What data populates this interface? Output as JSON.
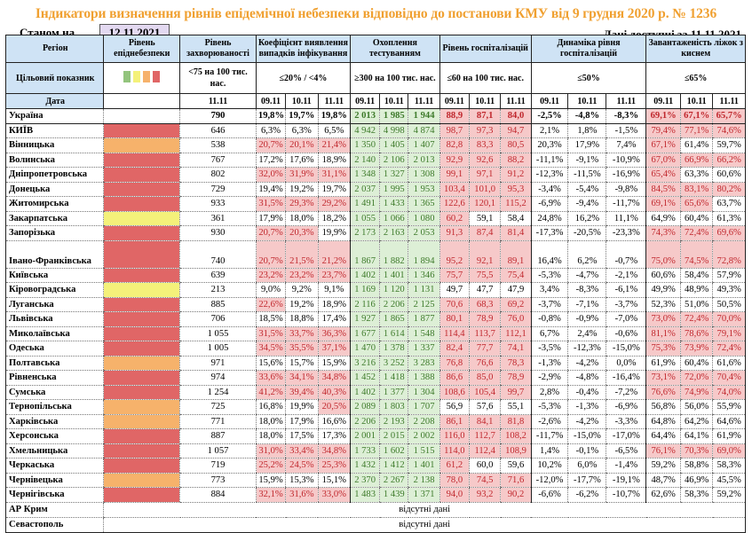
{
  "title": "Індикатори визначення рівнів епідемічної небезпеки відповідно до постанови КМУ від 9 грудня 2020 р. № 1236",
  "as_of_label": "Станом на",
  "as_of_date": "12.11.2021",
  "data_available": "Дані доступні за 11.11.2021",
  "headers": {
    "region": "Регіон",
    "level": "Рівень епіднебезпеки",
    "morbidity": "Рівень захворюваності",
    "detection": "Коефіцієнт виявлення випадків інфікування",
    "testing": "Охоплення тестуванням",
    "hosp": "Рівень госпіталізацій",
    "hosp_dyn": "Динаміка рівня госпіталізацій",
    "oxygen": "Завантаженість ліжок з киснем"
  },
  "targets": {
    "label": "Цільовий показник",
    "morbidity": "<75 на 100 тис. нас.",
    "detection": "≤20% / <4%",
    "testing": "≥300 на 100 тис. нас.",
    "hosp": "≤60 на 100 тис. нас.",
    "hosp_dyn": "≤50%",
    "oxygen": "≤65%"
  },
  "legend_colors": [
    "#93c47d",
    "#f4f17a",
    "#f6b26b",
    "#e06666"
  ],
  "dates": {
    "label": "Дата",
    "morbidity": "11.11",
    "d": [
      "09.11",
      "10.11",
      "11.11"
    ]
  },
  "no_data_text": "відсутні дані",
  "rows": [
    {
      "region": "Україна",
      "level": "none",
      "morb": "790",
      "det": [
        "19,8%",
        "19,7%",
        "19,8%"
      ],
      "test": [
        "2 013",
        "1 985",
        "1 944"
      ],
      "hosp": [
        "88,9",
        "87,1",
        "84,0"
      ],
      "dyn": [
        "-2,5%",
        "-4,8%",
        "-8,3%"
      ],
      "oxy": [
        "69,1%",
        "67,1%",
        "65,7%"
      ]
    },
    {
      "region": "КИЇВ",
      "level": "red",
      "morb": "646",
      "det": [
        "6,3%",
        "6,3%",
        "6,5%"
      ],
      "test": [
        "4 942",
        "4 998",
        "4 874"
      ],
      "hosp": [
        "98,7",
        "97,3",
        "94,7"
      ],
      "dyn": [
        "2,1%",
        "1,8%",
        "-1,5%"
      ],
      "oxy": [
        "79,4%",
        "77,1%",
        "74,6%"
      ]
    },
    {
      "region": "Вінницька",
      "level": "orange",
      "morb": "538",
      "det": [
        "20,7%",
        "20,1%",
        "21,4%"
      ],
      "test": [
        "1 350",
        "1 405",
        "1 407"
      ],
      "hosp": [
        "82,8",
        "83,3",
        "80,5"
      ],
      "dyn": [
        "20,3%",
        "17,9%",
        "7,4%"
      ],
      "oxy": [
        "67,1%",
        "61,4%",
        "59,7%"
      ]
    },
    {
      "region": "Волинська",
      "level": "red",
      "morb": "767",
      "det": [
        "17,2%",
        "17,6%",
        "18,9%"
      ],
      "test": [
        "2 140",
        "2 106",
        "2 013"
      ],
      "hosp": [
        "92,9",
        "92,6",
        "88,2"
      ],
      "dyn": [
        "-11,1%",
        "-9,1%",
        "-10,9%"
      ],
      "oxy": [
        "67,0%",
        "66,9%",
        "66,2%"
      ]
    },
    {
      "region": "Дніпропетровська",
      "level": "red",
      "morb": "802",
      "det": [
        "32,0%",
        "31,9%",
        "31,1%"
      ],
      "test": [
        "1 348",
        "1 327",
        "1 308"
      ],
      "hosp": [
        "99,1",
        "97,1",
        "91,2"
      ],
      "dyn": [
        "-12,3%",
        "-11,5%",
        "-16,9%"
      ],
      "oxy": [
        "65,4%",
        "63,3%",
        "60,6%"
      ]
    },
    {
      "region": "Донецька",
      "level": "red",
      "morb": "729",
      "det": [
        "19,4%",
        "19,2%",
        "19,7%"
      ],
      "test": [
        "2 037",
        "1 995",
        "1 953"
      ],
      "hosp": [
        "103,4",
        "101,0",
        "95,3"
      ],
      "dyn": [
        "-3,4%",
        "-5,4%",
        "-9,8%"
      ],
      "oxy": [
        "84,5%",
        "83,1%",
        "80,2%"
      ]
    },
    {
      "region": "Житомирська",
      "level": "red",
      "morb": "933",
      "det": [
        "31,5%",
        "29,3%",
        "29,2%"
      ],
      "test": [
        "1 491",
        "1 433",
        "1 365"
      ],
      "hosp": [
        "122,6",
        "120,1",
        "115,2"
      ],
      "dyn": [
        "-6,9%",
        "-9,4%",
        "-11,7%"
      ],
      "oxy": [
        "69,1%",
        "65,6%",
        "63,7%"
      ]
    },
    {
      "region": "Закарпатська",
      "level": "yellow",
      "morb": "361",
      "det": [
        "17,9%",
        "18,0%",
        "18,2%"
      ],
      "test": [
        "1 055",
        "1 066",
        "1 080"
      ],
      "hosp": [
        "60,2",
        "59,1",
        "58,4"
      ],
      "dyn": [
        "24,8%",
        "16,2%",
        "11,1%"
      ],
      "oxy": [
        "64,9%",
        "60,4%",
        "61,3%"
      ]
    },
    {
      "region": "Запорізька",
      "level": "red",
      "morb": "930",
      "det": [
        "20,7%",
        "20,3%",
        "19,9%"
      ],
      "test": [
        "2 173",
        "2 163",
        "2 053"
      ],
      "hosp": [
        "91,3",
        "87,4",
        "81,4"
      ],
      "dyn": [
        "-17,3%",
        "-20,5%",
        "-23,3%"
      ],
      "oxy": [
        "74,3%",
        "72,4%",
        "69,6%"
      ]
    },
    {
      "region": "Івано-Франківська",
      "level": "red",
      "morb": "740",
      "det": [
        "20,7%",
        "21,5%",
        "21,2%"
      ],
      "test": [
        "1 867",
        "1 882",
        "1 894"
      ],
      "hosp": [
        "95,2",
        "92,1",
        "89,1"
      ],
      "dyn": [
        "16,4%",
        "6,2%",
        "-0,7%"
      ],
      "oxy": [
        "75,0%",
        "74,5%",
        "72,8%"
      ]
    },
    {
      "region": "Київська",
      "level": "red",
      "morb": "639",
      "det": [
        "23,2%",
        "23,2%",
        "23,7%"
      ],
      "test": [
        "1 402",
        "1 401",
        "1 346"
      ],
      "hosp": [
        "75,7",
        "75,5",
        "75,4"
      ],
      "dyn": [
        "-5,3%",
        "-4,7%",
        "-2,1%"
      ],
      "oxy": [
        "60,6%",
        "58,4%",
        "57,9%"
      ]
    },
    {
      "region": "Кіровоградська",
      "level": "yellow",
      "morb": "213",
      "det": [
        "9,0%",
        "9,2%",
        "9,1%"
      ],
      "test": [
        "1 169",
        "1 120",
        "1 131"
      ],
      "hosp": [
        "49,7",
        "47,7",
        "47,9"
      ],
      "dyn": [
        "3,4%",
        "-8,3%",
        "-6,1%"
      ],
      "oxy": [
        "49,9%",
        "48,9%",
        "49,3%"
      ]
    },
    {
      "region": "Луганська",
      "level": "red",
      "morb": "885",
      "det": [
        "22,6%",
        "19,2%",
        "18,9%"
      ],
      "test": [
        "2 116",
        "2 206",
        "2 125"
      ],
      "hosp": [
        "70,6",
        "68,3",
        "69,2"
      ],
      "dyn": [
        "-3,7%",
        "-7,1%",
        "-3,7%"
      ],
      "oxy": [
        "52,3%",
        "51,0%",
        "50,5%"
      ]
    },
    {
      "region": "Львівська",
      "level": "red",
      "morb": "706",
      "det": [
        "18,5%",
        "18,8%",
        "17,4%"
      ],
      "test": [
        "1 927",
        "1 865",
        "1 877"
      ],
      "hosp": [
        "80,1",
        "78,9",
        "76,0"
      ],
      "dyn": [
        "-0,8%",
        "-0,9%",
        "-7,0%"
      ],
      "oxy": [
        "73,0%",
        "72,4%",
        "70,0%"
      ]
    },
    {
      "region": "Миколаївська",
      "level": "red",
      "morb": "1 055",
      "det": [
        "31,5%",
        "33,7%",
        "36,3%"
      ],
      "test": [
        "1 677",
        "1 614",
        "1 548"
      ],
      "hosp": [
        "114,4",
        "113,7",
        "112,1"
      ],
      "dyn": [
        "6,7%",
        "2,4%",
        "-0,6%"
      ],
      "oxy": [
        "81,1%",
        "78,6%",
        "79,1%"
      ]
    },
    {
      "region": "Одеська",
      "level": "red",
      "morb": "1 005",
      "det": [
        "34,5%",
        "35,5%",
        "37,1%"
      ],
      "test": [
        "1 470",
        "1 378",
        "1 337"
      ],
      "hosp": [
        "82,4",
        "77,7",
        "74,1"
      ],
      "dyn": [
        "-3,5%",
        "-12,3%",
        "-15,0%"
      ],
      "oxy": [
        "75,3%",
        "73,9%",
        "72,4%"
      ]
    },
    {
      "region": "Полтавська",
      "level": "orange",
      "morb": "971",
      "det": [
        "15,6%",
        "15,7%",
        "15,9%"
      ],
      "test": [
        "3 216",
        "3 252",
        "3 283"
      ],
      "hosp": [
        "76,8",
        "76,6",
        "78,3"
      ],
      "dyn": [
        "-1,3%",
        "-4,2%",
        "0,0%"
      ],
      "oxy": [
        "61,9%",
        "60,4%",
        "61,6%"
      ]
    },
    {
      "region": "Рівненська",
      "level": "red",
      "morb": "974",
      "det": [
        "33,6%",
        "34,1%",
        "34,8%"
      ],
      "test": [
        "1 452",
        "1 418",
        "1 388"
      ],
      "hosp": [
        "86,6",
        "85,0",
        "78,9"
      ],
      "dyn": [
        "-2,9%",
        "-4,8%",
        "-16,4%"
      ],
      "oxy": [
        "73,1%",
        "72,0%",
        "70,4%"
      ]
    },
    {
      "region": "Сумська",
      "level": "red",
      "morb": "1 254",
      "det": [
        "41,2%",
        "39,4%",
        "40,3%"
      ],
      "test": [
        "1 402",
        "1 377",
        "1 304"
      ],
      "hosp": [
        "108,6",
        "105,4",
        "99,7"
      ],
      "dyn": [
        "2,8%",
        "-0,4%",
        "-7,2%"
      ],
      "oxy": [
        "76,6%",
        "74,9%",
        "74,0%"
      ]
    },
    {
      "region": "Тернопільська",
      "level": "orange",
      "morb": "725",
      "det": [
        "16,8%",
        "19,9%",
        "20,5%"
      ],
      "test": [
        "2 089",
        "1 803",
        "1 707"
      ],
      "hosp": [
        "56,9",
        "57,6",
        "55,1"
      ],
      "dyn": [
        "-5,3%",
        "-1,3%",
        "-6,9%"
      ],
      "oxy": [
        "56,8%",
        "56,0%",
        "55,9%"
      ]
    },
    {
      "region": "Харківська",
      "level": "orange",
      "morb": "771",
      "det": [
        "18,0%",
        "17,9%",
        "16,6%"
      ],
      "test": [
        "2 206",
        "2 193",
        "2 208"
      ],
      "hosp": [
        "86,1",
        "84,1",
        "81,8"
      ],
      "dyn": [
        "-2,6%",
        "-4,2%",
        "-3,3%"
      ],
      "oxy": [
        "64,8%",
        "64,2%",
        "64,6%"
      ]
    },
    {
      "region": "Херсонська",
      "level": "red",
      "morb": "887",
      "det": [
        "18,0%",
        "17,5%",
        "17,3%"
      ],
      "test": [
        "2 001",
        "2 015",
        "2 002"
      ],
      "hosp": [
        "116,0",
        "112,7",
        "108,2"
      ],
      "dyn": [
        "-11,7%",
        "-15,0%",
        "-17,0%"
      ],
      "oxy": [
        "64,4%",
        "64,1%",
        "61,9%"
      ]
    },
    {
      "region": "Хмельницька",
      "level": "red",
      "morb": "1 057",
      "det": [
        "31,0%",
        "33,4%",
        "34,8%"
      ],
      "test": [
        "1 733",
        "1 602",
        "1 515"
      ],
      "hosp": [
        "114,0",
        "112,4",
        "108,9"
      ],
      "dyn": [
        "1,4%",
        "-0,1%",
        "-6,5%"
      ],
      "oxy": [
        "76,1%",
        "70,3%",
        "69,0%"
      ]
    },
    {
      "region": "Черкаська",
      "level": "red",
      "morb": "719",
      "det": [
        "25,2%",
        "24,5%",
        "25,3%"
      ],
      "test": [
        "1 432",
        "1 412",
        "1 401"
      ],
      "hosp": [
        "61,2",
        "60,0",
        "59,6"
      ],
      "dyn": [
        "10,2%",
        "6,0%",
        "-1,4%"
      ],
      "oxy": [
        "59,2%",
        "58,8%",
        "58,3%"
      ]
    },
    {
      "region": "Чернівецька",
      "level": "orange",
      "morb": "773",
      "det": [
        "15,9%",
        "15,3%",
        "15,1%"
      ],
      "test": [
        "2 370",
        "2 267",
        "2 138"
      ],
      "hosp": [
        "78,0",
        "74,5",
        "71,6"
      ],
      "dyn": [
        "-12,0%",
        "-17,7%",
        "-19,1%"
      ],
      "oxy": [
        "48,7%",
        "46,9%",
        "45,5%"
      ]
    },
    {
      "region": "Чернігівська",
      "level": "red",
      "morb": "884",
      "det": [
        "32,1%",
        "31,6%",
        "33,0%"
      ],
      "test": [
        "1 483",
        "1 439",
        "1 371"
      ],
      "hosp": [
        "94,0",
        "93,2",
        "90,2"
      ],
      "dyn": [
        "-6,6%",
        "-6,2%",
        "-10,7%"
      ],
      "oxy": [
        "62,6%",
        "58,3%",
        "59,2%"
      ]
    }
  ],
  "no_data_rows": [
    "АР Крим",
    "Севастополь"
  ]
}
